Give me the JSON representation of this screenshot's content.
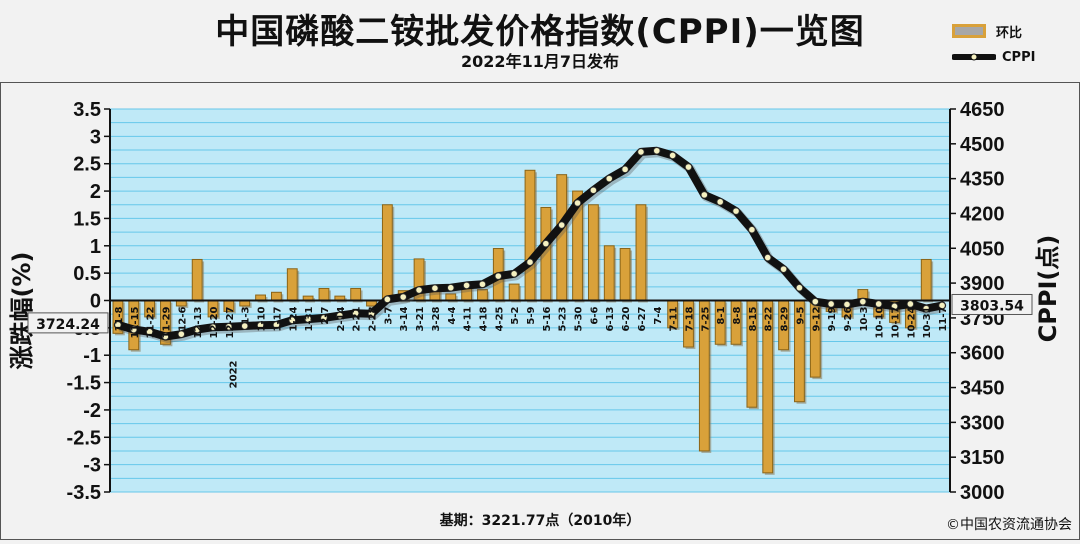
{
  "header": {
    "title": "中国磷酸二铵批发价格指数(CPPI)一览图",
    "subtitle": "2022年11月7日发布"
  },
  "legend": {
    "bar_label": "环比",
    "line_label": "CPPI"
  },
  "footer": {
    "base_note": "基期：3221.77点（2010年）",
    "copyright": "©中国农资流通协会"
  },
  "annotations": {
    "left_value": "3724.24",
    "right_value": "3803.54",
    "year_label": "2022"
  },
  "colors": {
    "bar": "#d9a13a",
    "bar_edge": "#8a6418",
    "line": "#111111",
    "marker": "#f5f0c0",
    "plot_bg": "#bfe9f7",
    "grid": "#66c7ea"
  },
  "chart_data": {
    "type": "bar",
    "xlabel": "",
    "ylabel": "涨跌幅(%)",
    "ylabel_right": "CPPI(点)",
    "ylim": [
      -3.5,
      3.5
    ],
    "ylim_right": [
      3000,
      4650
    ],
    "yticks": [
      "3.5",
      "3",
      "2.5",
      "2",
      "1.5",
      "1",
      "0.5",
      "0",
      "-0.5",
      "-1",
      "-1.5",
      "-2",
      "-2.5",
      "-3",
      "-3.5"
    ],
    "yticks_right": [
      "4650",
      "4500",
      "4350",
      "4200",
      "4050",
      "3900",
      "3750",
      "3600",
      "3450",
      "3300",
      "3150",
      "3000"
    ],
    "grid": true,
    "categories": [
      "11-8",
      "11-15",
      "11-22",
      "11-29",
      "12-6",
      "12-13",
      "12-20",
      "12-27",
      "2022-1-3",
      "1-10",
      "1-17",
      "1-24",
      "1-31",
      "2-7",
      "2-14",
      "2-21",
      "2-28",
      "3-7",
      "3-14",
      "3-21",
      "3-28",
      "4-4",
      "4-11",
      "4-18",
      "4-25",
      "5-2",
      "5-9",
      "5-16",
      "5-23",
      "5-30",
      "6-6",
      "6-13",
      "6-20",
      "6-27",
      "7-4",
      "7-11",
      "7-18",
      "7-25",
      "8-1",
      "8-8",
      "8-15",
      "8-22",
      "8-29",
      "9-5",
      "9-12",
      "9-19",
      "9-26",
      "10-3",
      "10-10",
      "10-17",
      "10-24",
      "10-31",
      "11-7"
    ],
    "tick_labels": [
      "11-8",
      "11-15",
      "11-22",
      "11-29",
      "12-6",
      "12-13",
      "12-20",
      "12-27",
      "1-3",
      "1-10",
      "1-17",
      "1-24",
      "1-31",
      "2-7",
      "2-14",
      "2-21",
      "2-28",
      "3-7",
      "3-14",
      "3-21",
      "3-28",
      "4-4",
      "4-11",
      "4-18",
      "4-25",
      "5-2",
      "5-9",
      "5-16",
      "5-23",
      "5-30",
      "6-6",
      "6-13",
      "6-20",
      "6-27",
      "7-4",
      "7-11",
      "7-18",
      "7-25",
      "8-1",
      "8-8",
      "8-15",
      "8-22",
      "8-29",
      "9-5",
      "9-12",
      "9-19",
      "9-26",
      "10-3",
      "10-10",
      "10-17",
      "10-24",
      "10-31",
      "11-7"
    ],
    "series": [
      {
        "name": "环比",
        "type": "bar",
        "values": [
          -0.6,
          -0.9,
          -0.3,
          -0.8,
          -0.1,
          0.75,
          -0.3,
          -0.2,
          -0.1,
          0.1,
          0.15,
          0.58,
          0.08,
          0.22,
          0.08,
          0.22,
          -0.1,
          1.75,
          0.18,
          0.76,
          0.22,
          0.12,
          0.3,
          0.2,
          0.95,
          0.3,
          2.38,
          1.7,
          2.3,
          2.0,
          1.75,
          1.0,
          0.95,
          1.75,
          0.0,
          -0.5,
          -0.85,
          -2.75,
          -0.8,
          -0.8,
          -1.95,
          -3.15,
          -0.9,
          -1.85,
          -1.4,
          -0.2,
          -0.3,
          0.2,
          -0.3,
          -0.4,
          -0.5,
          0.75,
          0.0
        ]
      },
      {
        "name": "CPPI",
        "type": "line",
        "axis": "right",
        "values": [
          3720,
          3700,
          3690,
          3670,
          3680,
          3700,
          3710,
          3712,
          3715,
          3718,
          3720,
          3740,
          3745,
          3750,
          3760,
          3770,
          3768,
          3830,
          3840,
          3870,
          3878,
          3880,
          3890,
          3895,
          3930,
          3940,
          3990,
          4070,
          4150,
          4245,
          4300,
          4350,
          4390,
          4465,
          4470,
          4450,
          4400,
          4280,
          4250,
          4210,
          4130,
          4010,
          3960,
          3880,
          3820,
          3810,
          3808,
          3820,
          3810,
          3800,
          3810,
          3790,
          3803.54
        ]
      }
    ]
  }
}
